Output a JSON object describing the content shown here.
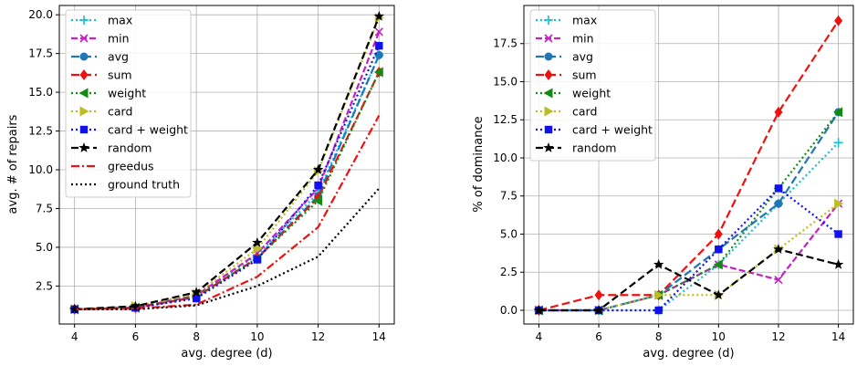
{
  "chart_data": [
    {
      "type": "line",
      "title": "",
      "xlabel": "avg. degree (d)",
      "ylabel": "avg. # of repairs",
      "x": [
        4,
        6,
        8,
        10,
        12,
        14
      ],
      "xticks": [
        "4",
        "6",
        "8",
        "10",
        "12",
        "14"
      ],
      "yticks": [
        "2.5",
        "5.0",
        "7.5",
        "10.0",
        "12.5",
        "15.0",
        "17.5",
        "20.0"
      ],
      "xlim": [
        3.5,
        14.5
      ],
      "ylim": [
        0.05,
        20.6
      ],
      "grid": true,
      "legend_position": "top-left",
      "series": [
        {
          "name": "max",
          "color": "#17becf",
          "values": [
            1.0,
            1.1,
            1.9,
            4.5,
            8.5,
            17.4
          ]
        },
        {
          "name": "min",
          "color": "#c520c5",
          "values": [
            1.0,
            1.1,
            1.9,
            4.6,
            8.8,
            18.9
          ]
        },
        {
          "name": "avg",
          "color": "#1f77b4",
          "values": [
            1.0,
            1.1,
            1.8,
            4.3,
            8.3,
            17.4
          ]
        },
        {
          "name": "sum",
          "color": "#ee1111",
          "values": [
            1.0,
            1.1,
            1.8,
            4.3,
            8.2,
            16.3
          ]
        },
        {
          "name": "weight",
          "color": "#138a13",
          "values": [
            1.0,
            1.1,
            1.8,
            4.3,
            8.0,
            16.3
          ]
        },
        {
          "name": "card",
          "color": "#bcbd22",
          "values": [
            1.0,
            1.2,
            2.0,
            4.9,
            9.9,
            19.8
          ]
        },
        {
          "name": "card + weight",
          "color": "#1111ee",
          "values": [
            1.0,
            1.1,
            1.7,
            4.2,
            9.0,
            18.0
          ]
        },
        {
          "name": "random",
          "color": "#000000",
          "values": [
            1.0,
            1.2,
            2.1,
            5.3,
            10.0,
            19.9
          ]
        },
        {
          "name": "greedus",
          "color": "#ee1111",
          "values": [
            1.0,
            1.05,
            1.3,
            3.1,
            6.3,
            13.5
          ]
        },
        {
          "name": "ground truth",
          "color": "#000000",
          "values": [
            1.0,
            1.0,
            1.25,
            2.5,
            4.4,
            8.8
          ]
        }
      ]
    },
    {
      "type": "line",
      "title": "",
      "xlabel": "avg. degree (d)",
      "ylabel": "% of dominance",
      "x": [
        4,
        6,
        8,
        10,
        12,
        14
      ],
      "xticks": [
        "4",
        "6",
        "8",
        "10",
        "12",
        "14"
      ],
      "yticks": [
        "0.0",
        "2.5",
        "5.0",
        "7.5",
        "10.0",
        "12.5",
        "15.0",
        "17.5"
      ],
      "xlim": [
        3.5,
        14.5
      ],
      "ylim": [
        -0.9,
        20.0
      ],
      "grid": true,
      "legend_position": "top-left",
      "series": [
        {
          "name": "max",
          "color": "#17becf",
          "values": [
            0,
            0,
            0,
            3,
            7,
            11
          ]
        },
        {
          "name": "min",
          "color": "#c520c5",
          "values": [
            0,
            0,
            1,
            3,
            2,
            7
          ]
        },
        {
          "name": "avg",
          "color": "#1f77b4",
          "values": [
            0,
            0,
            1,
            4,
            7,
            13
          ]
        },
        {
          "name": "sum",
          "color": "#ee1111",
          "values": [
            0,
            1,
            1,
            5,
            13,
            19
          ]
        },
        {
          "name": "weight",
          "color": "#138a13",
          "values": [
            0,
            0,
            1,
            3,
            8,
            13
          ]
        },
        {
          "name": "card",
          "color": "#bcbd22",
          "values": [
            0,
            0,
            1,
            1,
            4,
            7
          ]
        },
        {
          "name": "card + weight",
          "color": "#1111ee",
          "values": [
            0,
            0,
            0,
            4,
            8,
            5
          ]
        },
        {
          "name": "random",
          "color": "#000000",
          "values": [
            0,
            0,
            3,
            1,
            4,
            3
          ]
        }
      ]
    }
  ]
}
